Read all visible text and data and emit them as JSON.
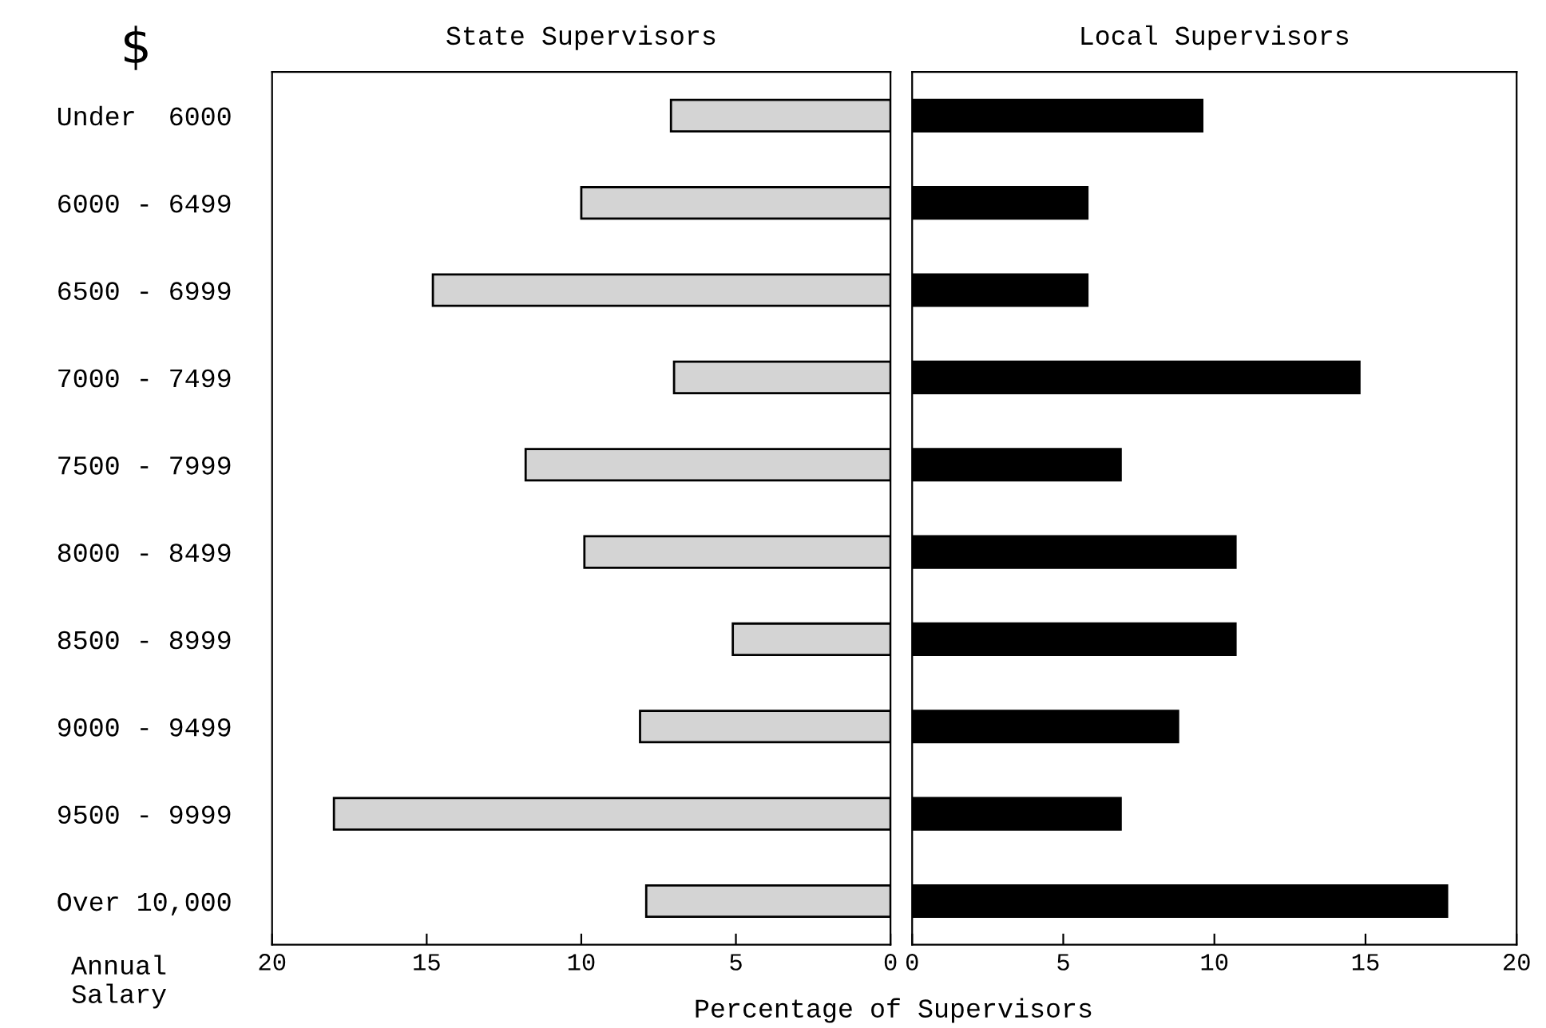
{
  "chart_data": [
    {
      "type": "bar",
      "orientation": "horizontal",
      "title": "State Supervisors",
      "xlabel": "Percentage of Supervisors",
      "annotations": [
        "$",
        "Annual\nSalary"
      ],
      "categories": [
        "Under  6000",
        "6000 - 6499",
        "6500 - 6999",
        "7000 - 7499",
        "7500 - 7999",
        "8000 - 8499",
        "8500 - 8999",
        "9000 - 9499",
        "9500 - 9999",
        "Over 10,000"
      ],
      "series": [
        {
          "color": "#d4d4d4",
          "values": [
            7.1,
            10.0,
            14.8,
            7.0,
            11.8,
            9.9,
            5.1,
            8.1,
            18.0,
            7.9
          ]
        }
      ],
      "xlim": [
        20,
        0
      ],
      "xticks": [
        20,
        15,
        10,
        5,
        0
      ],
      "grid": false,
      "legend": false
    },
    {
      "type": "bar",
      "orientation": "horizontal",
      "title": "Local Supervisors",
      "series": [
        {
          "color": "#000000",
          "values": [
            9.6,
            5.8,
            5.8,
            14.8,
            6.9,
            10.7,
            10.7,
            8.8,
            6.9,
            17.7
          ]
        }
      ],
      "xlim": [
        0,
        20
      ],
      "xticks": [
        0,
        5,
        10,
        15,
        20
      ],
      "tick_labels": "x",
      "grid": false,
      "legend": false
    }
  ]
}
